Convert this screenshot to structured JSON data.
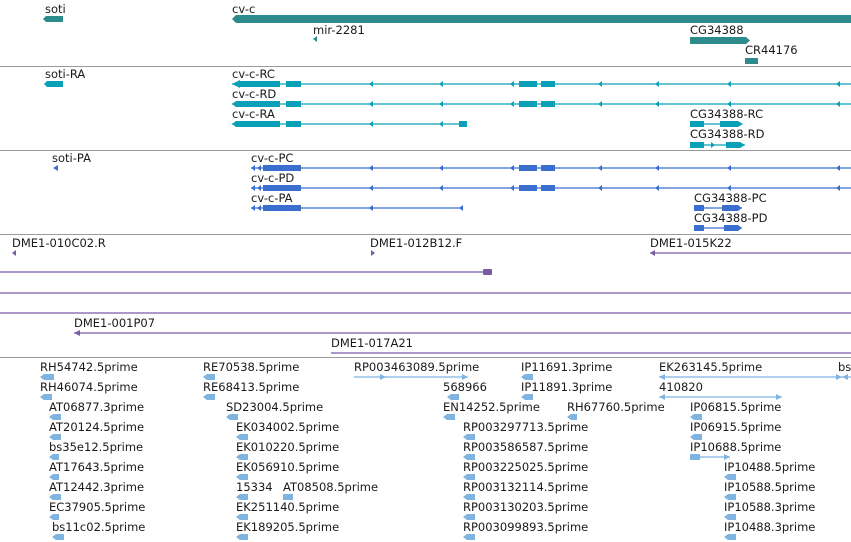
{
  "colors": {
    "gene": "#2e8b8b",
    "transcript": "#0aa0b8",
    "protein": "#3a6fd0",
    "clone": "#7b5aa6",
    "est": "#7fb3e0",
    "separator": "#9a9a9a"
  },
  "genes": {
    "soti": "soti",
    "cv_c": "cv-c",
    "mir_2281": "mir-2281",
    "cg34388": "CG34388",
    "cr44176": "CR44176"
  },
  "transcripts": {
    "soti_ra": "soti-RA",
    "cv_c_rc": "cv-c-RC",
    "cv_c_rd": "cv-c-RD",
    "cv_c_ra": "cv-c-RA",
    "cg34388_rc": "CG34388-RC",
    "cg34388_rd": "CG34388-RD"
  },
  "proteins": {
    "soti_pa": "soti-PA",
    "cv_c_pc": "cv-c-PC",
    "cv_c_pd": "cv-c-PD",
    "cv_c_pa": "cv-c-PA",
    "cg34388_pc": "CG34388-PC",
    "cg34388_pd": "CG34388-PD"
  },
  "clones": {
    "c010c02": "DME1-010C02.R",
    "c012b12": "DME1-012B12.F",
    "c015k22": "DME1-015K22",
    "c001p07": "DME1-001P07",
    "c017a21": "DME1-017A21"
  },
  "ests": {
    "rh54742": "RH54742.5prime",
    "rh46074": "RH46074.5prime",
    "at06877": "AT06877.3prime",
    "at20124": "AT20124.5prime",
    "bs35e12": "bs35e12.5prime",
    "at17643": "AT17643.5prime",
    "at12442": "AT12442.3prime",
    "ec37905": "EC37905.5prime",
    "bs11c02": "bs11c02.5prime",
    "re70538": "RE70538.5prime",
    "re68413": "RE68413.5prime",
    "sd23004": "SD23004.5prime",
    "ek034002": "EK034002.5prime",
    "ek010220": "EK010220.5prime",
    "ek056910": "EK056910.5prime",
    "n15334": "15334",
    "at08508": "AT08508.5prime",
    "ek251140": "EK251140.5prime",
    "ek189205": "EK189205.5prime",
    "rp003463089": "RP003463089.5prime",
    "n568966": "568966",
    "en14252": "EN14252.5prime",
    "rp003297713": "RP003297713.5prime",
    "rp003586587": "RP003586587.5prime",
    "rp003225025": "RP003225025.5prime",
    "rp003132114": "RP003132114.5prime",
    "rp003130203": "RP003130203.5prime",
    "rp003099893": "RP003099893.5prime",
    "ip11691": "IP11691.3prime",
    "ip11891": "IP11891.3prime",
    "rh67760": "RH67760.5prime",
    "ek263145": "EK263145.5prime",
    "n410820": "410820",
    "ip06815": "IP06815.5prime",
    "ip06915": "IP06915.5prime",
    "ip10688": "IP10688.5prime",
    "ip10488_5": "IP10488.5prime",
    "ip10588_5": "IP10588.5prime",
    "ip10588_3": "IP10588.3prime",
    "ip10488_3": "IP10488.3prime",
    "bs_cut": "bs"
  }
}
